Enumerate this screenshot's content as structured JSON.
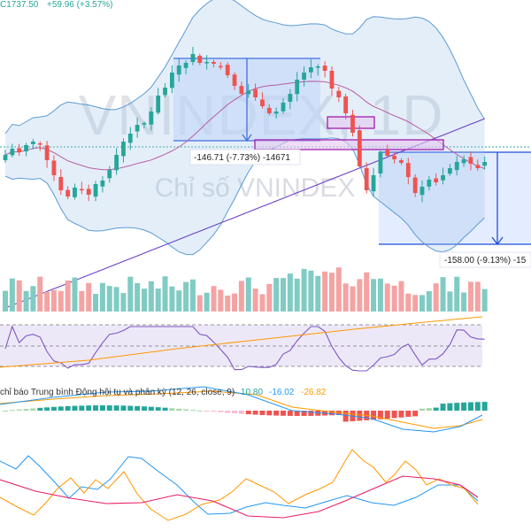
{
  "header": {
    "symbol_price": "C1737.50",
    "change": "+59.96 (+3.57%)"
  },
  "watermark": {
    "symbol": "VNINDEX, 1D",
    "name": "Chỉ số VNINDEX"
  },
  "measures": [
    {
      "label": "-146.71 (-7.73%) -14671"
    },
    {
      "label": "-158.00 (-9.13%) -15"
    }
  ],
  "macd": {
    "title": "chỉ báo Trung bình Động hội tụ và phân kỳ (12, 26, close, 9)",
    "hist": "10.80",
    "macd": "-16.02",
    "signal": "-26.82"
  },
  "colors": {
    "up": "#26a69a",
    "down": "#ef5350",
    "band": "#5b9bd5",
    "ma": "#7b3fa0",
    "measure": "#1e4fd8",
    "rsi": "#7e57c2",
    "orange": "#ff9800",
    "pink": "#e91e63"
  },
  "chart_data": {
    "type": "candlestick",
    "series": {
      "close": [
        1745,
        1752,
        1748,
        1756,
        1760,
        1758,
        1739,
        1722,
        1705,
        1698,
        1708,
        1706,
        1700,
        1712,
        1716,
        1728,
        1745,
        1760,
        1769,
        1779,
        1781,
        1794,
        1812,
        1821,
        1838,
        1846,
        1849,
        1859,
        1849,
        1850,
        1848,
        1845,
        1835,
        1823,
        1814,
        1818,
        1810,
        1800,
        1792,
        1794,
        1804,
        1814,
        1830,
        1838,
        1844,
        1845,
        1840,
        1820,
        1810,
        1792,
        1770,
        1732,
        1705,
        1722,
        1748,
        1744,
        1740,
        1736,
        1720,
        1702,
        1709,
        1717,
        1714,
        1722,
        1730,
        1737,
        1740,
        1735,
        1730,
        1737
      ],
      "volume_bars": 70
    },
    "annotations": [
      "-146.71 (-7.73%) -14671",
      "-158.00 (-9.13%) -15"
    ]
  }
}
